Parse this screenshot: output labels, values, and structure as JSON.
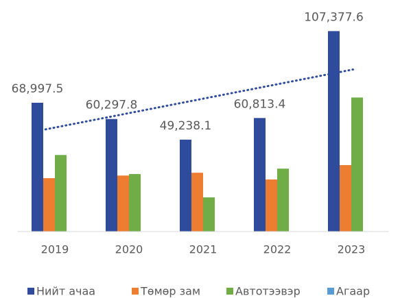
{
  "chart_data": {
    "type": "bar",
    "categories": [
      "2019",
      "2020",
      "2021",
      "2022",
      "2023"
    ],
    "series": [
      {
        "name": "Нийт ачаа",
        "color": "#2f4b9c",
        "values": [
          68997.5,
          60297.8,
          49238.1,
          60813.4,
          107377.6
        ],
        "value_labels": [
          "68,997.5",
          "60,297.8",
          "49,238.1",
          "60,813.4",
          "107,377.6"
        ],
        "trendline": true
      },
      {
        "name": "Төмөр зам",
        "color": "#ed7d31",
        "values": [
          28600,
          30000,
          31500,
          27900,
          35600
        ]
      },
      {
        "name": "Автотээвэр",
        "color": "#70ad47",
        "values": [
          41000,
          30800,
          18300,
          33700,
          71800
        ]
      },
      {
        "name": "Агаар",
        "color": "#5b9bd5",
        "values": [
          100,
          100,
          100,
          100,
          100
        ]
      }
    ],
    "ylim": [
      0,
      120000
    ],
    "legend": "bottom"
  }
}
